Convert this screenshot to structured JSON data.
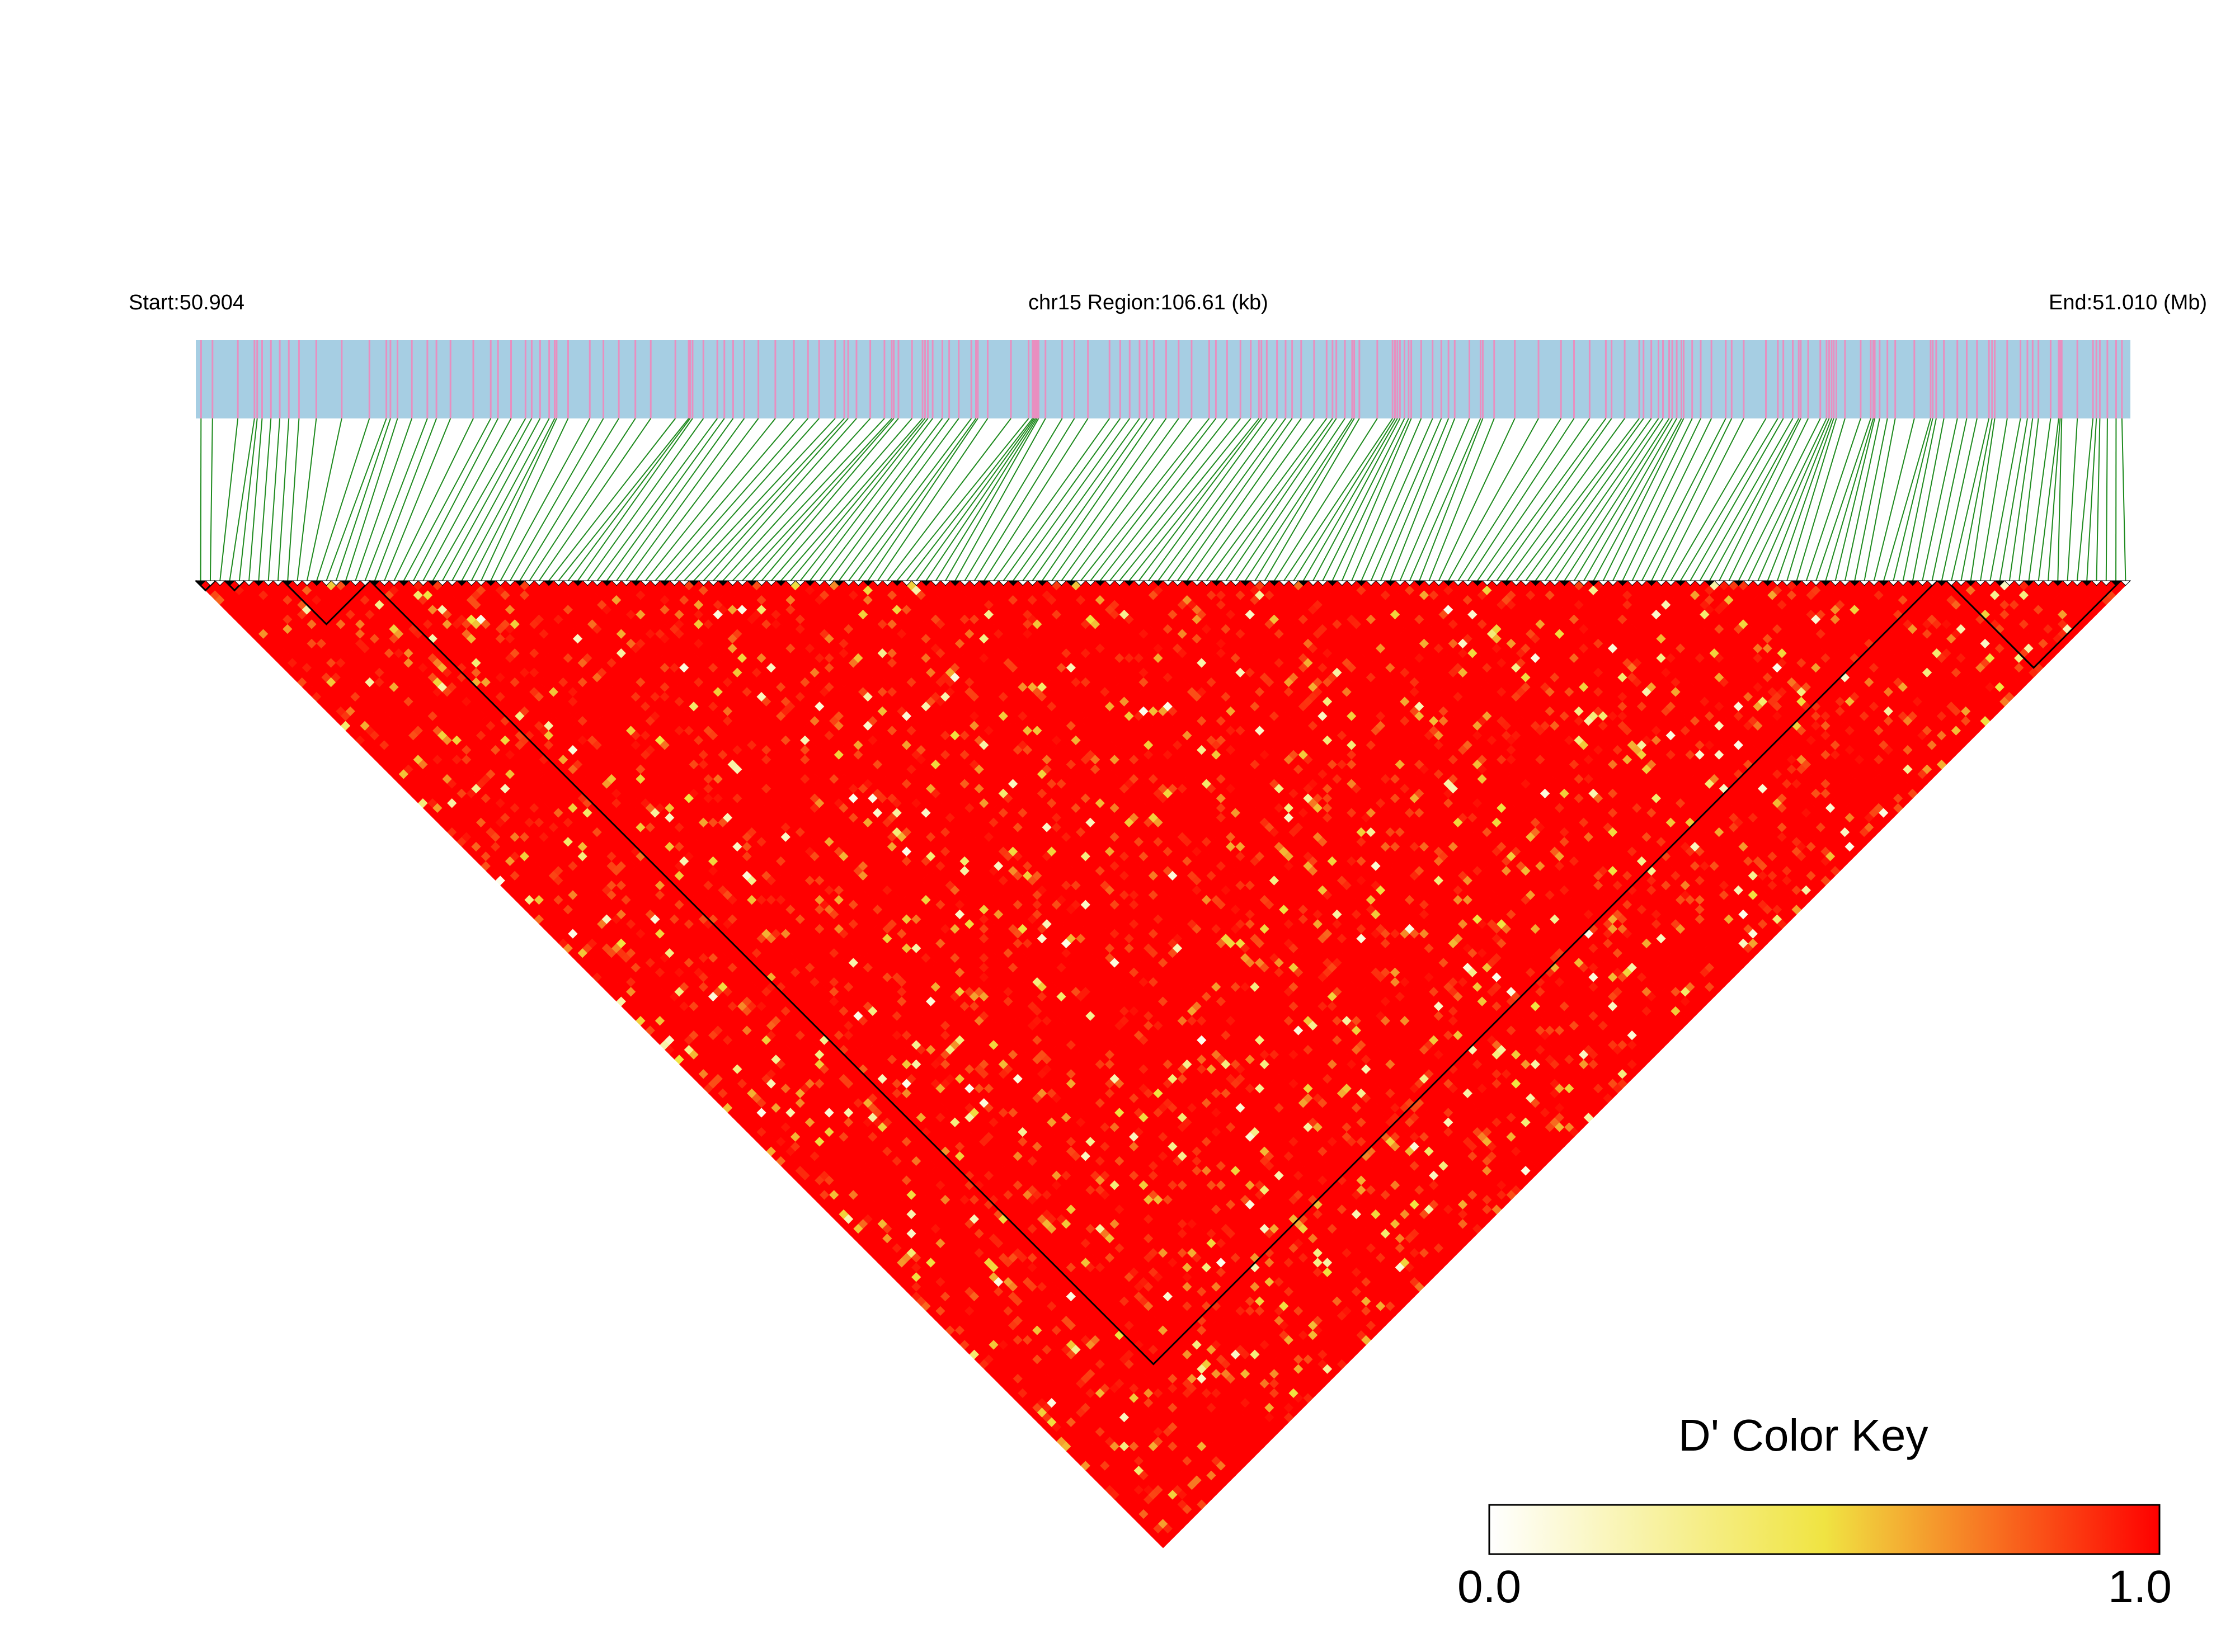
{
  "header": {
    "start_label": "Start:50.904",
    "region_label": "chr15 Region:106.61 (kb)",
    "end_label": "End:51.010 (Mb)"
  },
  "colors": {
    "track_background": "#a6cee3",
    "snp_tick": "#e88fc0",
    "connector_line": "#1e8a1e",
    "ld_high": "#ff0000",
    "ld_mid": "#f0e442",
    "ld_low": "#ffffff",
    "block_outline": "#000000"
  },
  "chart_data": {
    "type": "heatmap",
    "title": "",
    "chromosome": "chr15",
    "region_start_mb": 50.904,
    "region_end_mb": 51.01,
    "region_length_kb": 106.61,
    "n_snps": 200,
    "statistic": "D'",
    "dominant_value": 1.0,
    "color_key": {
      "title": "D' Color Key",
      "min_label": "0.0",
      "max_label": "1.0",
      "min": 0.0,
      "max": 1.0,
      "gradient": [
        "#ffffff",
        "#f0e442",
        "#ff0000"
      ]
    },
    "haplotype_blocks": [
      {
        "first_snp": 1,
        "last_snp": 2
      },
      {
        "first_snp": 4,
        "last_snp": 5
      },
      {
        "first_snp": 10,
        "last_snp": 18
      },
      {
        "first_snp": 19,
        "last_snp": 180
      },
      {
        "first_snp": 182,
        "last_snp": 199
      }
    ]
  }
}
